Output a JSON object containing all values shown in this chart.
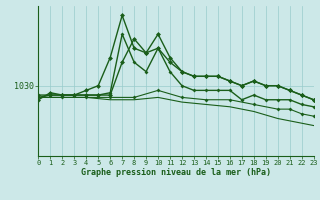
{
  "background_color": "#cce8e8",
  "plot_bg_color": "#cce8e8",
  "grid_color": "#99cccc",
  "line_color": "#1a5e1a",
  "xlabel": "Graphe pression niveau de la mer (hPa)",
  "ylabel_tick": "1030",
  "ylim": [
    1015,
    1047
  ],
  "xlim": [
    0,
    23
  ],
  "xticks": [
    0,
    1,
    2,
    3,
    4,
    5,
    6,
    7,
    8,
    9,
    10,
    11,
    12,
    13,
    14,
    15,
    16,
    17,
    18,
    19,
    20,
    21,
    22,
    23
  ],
  "ytick_val": 1030,
  "series": [
    {
      "x": [
        0,
        1,
        2,
        3,
        4,
        5,
        6,
        7,
        8,
        9,
        10,
        11,
        12,
        13,
        14,
        15,
        16,
        17,
        18,
        19,
        20,
        21,
        22,
        23
      ],
      "y": [
        1027,
        1028.5,
        1028,
        1028,
        1029,
        1030,
        1036,
        1045,
        1038,
        1037,
        1041,
        1036,
        1033,
        1032,
        1032,
        1032,
        1031,
        1030,
        1031,
        1030,
        1030,
        1029,
        1028,
        1027
      ],
      "marker": true,
      "lw": 1.0,
      "ms": 2.5
    },
    {
      "x": [
        0,
        1,
        2,
        3,
        4,
        5,
        6,
        7,
        8,
        9,
        10,
        11,
        12,
        13,
        14,
        15,
        16,
        17,
        18,
        19,
        20,
        21,
        22,
        23
      ],
      "y": [
        1028,
        1028,
        1028,
        1028,
        1028,
        1028,
        1028,
        1035,
        1040,
        1037,
        1038,
        1035,
        1033,
        1032,
        1032,
        1032,
        1031,
        1030,
        1031,
        1030,
        1030,
        1029,
        1028,
        1027
      ],
      "marker": true,
      "lw": 1.0,
      "ms": 2.5
    },
    {
      "x": [
        0,
        1,
        2,
        3,
        4,
        5,
        6,
        7,
        8,
        9,
        10,
        11,
        12,
        13,
        14,
        15,
        16,
        17,
        18,
        19,
        20,
        21,
        22,
        23
      ],
      "y": [
        1027.5,
        1028,
        1028,
        1028,
        1028,
        1028,
        1028.5,
        1041,
        1035,
        1033,
        1038,
        1033,
        1030,
        1029,
        1029,
        1029,
        1029,
        1027,
        1028,
        1027,
        1027,
        1027,
        1026,
        1025.5
      ],
      "marker": true,
      "lw": 1.0,
      "ms": 2.0
    },
    {
      "x": [
        0,
        2,
        4,
        6,
        8,
        10,
        12,
        14,
        16,
        18,
        20,
        21,
        22,
        23
      ],
      "y": [
        1027.5,
        1027.5,
        1027.5,
        1027.5,
        1027.5,
        1029,
        1027.5,
        1027,
        1027,
        1026,
        1025,
        1025,
        1024,
        1023.5
      ],
      "marker": true,
      "lw": 0.8,
      "ms": 2.0
    },
    {
      "x": [
        0,
        2,
        4,
        6,
        8,
        10,
        12,
        14,
        16,
        18,
        20,
        22,
        23
      ],
      "y": [
        1027.5,
        1027.5,
        1027.5,
        1027,
        1027,
        1027.5,
        1026.5,
        1026,
        1025.5,
        1024.5,
        1023,
        1022,
        1021.5
      ],
      "marker": false,
      "lw": 0.8,
      "ms": 0
    }
  ]
}
